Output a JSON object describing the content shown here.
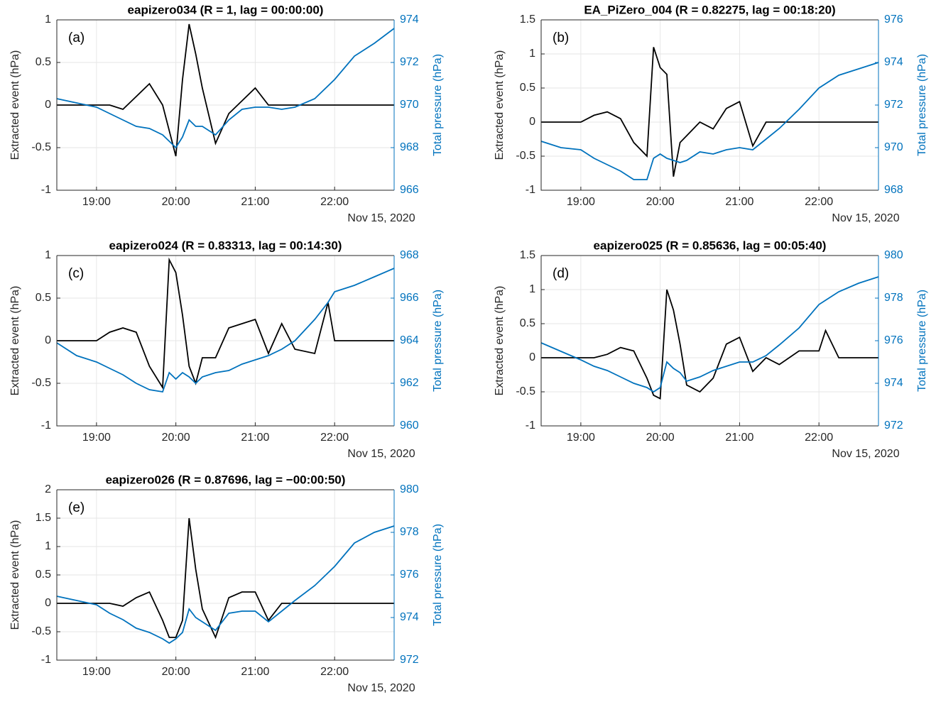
{
  "chart_data": [
    {
      "type": "line",
      "title": "eapizero034 (R = 1, lag = 00:00:00)",
      "panel_label": "(a)",
      "y_label": "Extracted event (hPa)",
      "y2_label": "Total pressure (hPa)",
      "x_label": "Nov 15, 2020",
      "xlim": [
        "18:30",
        "22:45"
      ],
      "xticks": [
        "19:00",
        "20:00",
        "21:00",
        "22:00"
      ],
      "ylim": [
        -1,
        1
      ],
      "yticks": [
        -1,
        -0.5,
        0,
        0.5,
        1
      ],
      "y2lim": [
        966,
        974
      ],
      "y2ticks": [
        966,
        968,
        970,
        972,
        974
      ],
      "grid": true,
      "x": [
        "18:30",
        "18:45",
        "19:00",
        "19:10",
        "19:20",
        "19:30",
        "19:40",
        "19:50",
        "19:55",
        "20:00",
        "20:05",
        "20:10",
        "20:15",
        "20:20",
        "20:30",
        "20:40",
        "20:50",
        "21:00",
        "21:10",
        "21:20",
        "21:30",
        "21:45",
        "22:00",
        "22:15",
        "22:30",
        "22:45"
      ],
      "series": [
        {
          "color": "#000000",
          "values": [
            0,
            0,
            0,
            0,
            -0.05,
            0.1,
            0.25,
            0,
            -0.3,
            -0.6,
            0.3,
            0.95,
            0.6,
            0.2,
            -0.45,
            -0.1,
            0.05,
            0.2,
            0,
            0,
            0,
            0,
            0,
            0,
            0,
            0
          ]
        },
        {
          "color": "#0072bd",
          "axis": "y2",
          "values": [
            970.3,
            970.1,
            969.9,
            969.6,
            969.3,
            969.0,
            968.9,
            968.6,
            968.3,
            968.0,
            968.5,
            969.3,
            969.0,
            969.0,
            968.6,
            969.3,
            969.8,
            969.9,
            969.9,
            969.8,
            969.9,
            970.3,
            971.2,
            972.3,
            972.9,
            973.6
          ]
        }
      ]
    },
    {
      "type": "line",
      "title": "EA_PiZero_004 (R = 0.82275, lag = 00:18:20)",
      "panel_label": "(b)",
      "y_label": "Extracted event (hPa)",
      "y2_label": "Total pressure (hPa)",
      "x_label": "Nov 15, 2020",
      "xlim": [
        "18:30",
        "22:45"
      ],
      "xticks": [
        "19:00",
        "20:00",
        "21:00",
        "22:00"
      ],
      "ylim": [
        -1,
        1.5
      ],
      "yticks": [
        -1,
        -0.5,
        0,
        0.5,
        1,
        1.5
      ],
      "y2lim": [
        968,
        976
      ],
      "y2ticks": [
        968,
        970,
        972,
        974,
        976
      ],
      "grid": true,
      "x": [
        "18:30",
        "18:45",
        "19:00",
        "19:10",
        "19:20",
        "19:30",
        "19:40",
        "19:50",
        "19:55",
        "20:00",
        "20:05",
        "20:10",
        "20:15",
        "20:20",
        "20:30",
        "20:40",
        "20:50",
        "21:00",
        "21:10",
        "21:20",
        "21:30",
        "21:45",
        "22:00",
        "22:15",
        "22:30",
        "22:45"
      ],
      "series": [
        {
          "color": "#000000",
          "values": [
            0,
            0,
            0,
            0.1,
            0.15,
            0.05,
            -0.3,
            -0.5,
            1.1,
            0.8,
            0.7,
            -0.8,
            -0.3,
            -0.2,
            0,
            -0.1,
            0.2,
            0.3,
            -0.35,
            0,
            0,
            0,
            0,
            0,
            0,
            0
          ]
        },
        {
          "color": "#0072bd",
          "axis": "y2",
          "values": [
            970.3,
            970.0,
            969.9,
            969.5,
            969.2,
            968.9,
            968.5,
            968.5,
            969.5,
            969.7,
            969.5,
            969.4,
            969.3,
            969.4,
            969.8,
            969.7,
            969.9,
            970.0,
            969.9,
            970.4,
            970.9,
            971.8,
            972.8,
            973.4,
            973.7,
            974.0
          ]
        }
      ]
    },
    {
      "type": "line",
      "title": "eapizero024 (R = 0.83313, lag = 00:14:30)",
      "panel_label": "(c)",
      "y_label": "Extracted event (hPa)",
      "y2_label": "Total pressure (hPa)",
      "x_label": "Nov 15, 2020",
      "xlim": [
        "18:30",
        "22:45"
      ],
      "xticks": [
        "19:00",
        "20:00",
        "21:00",
        "22:00"
      ],
      "ylim": [
        -1,
        1
      ],
      "yticks": [
        -1,
        -0.5,
        0,
        0.5,
        1
      ],
      "y2lim": [
        960,
        968
      ],
      "y2ticks": [
        960,
        962,
        964,
        966,
        968
      ],
      "grid": true,
      "x": [
        "18:30",
        "18:45",
        "19:00",
        "19:10",
        "19:20",
        "19:30",
        "19:40",
        "19:50",
        "19:55",
        "20:00",
        "20:05",
        "20:10",
        "20:15",
        "20:20",
        "20:30",
        "20:40",
        "20:50",
        "21:00",
        "21:10",
        "21:20",
        "21:30",
        "21:45",
        "21:55",
        "22:00",
        "22:15",
        "22:30",
        "22:45"
      ],
      "series": [
        {
          "color": "#000000",
          "values": [
            0,
            0,
            0,
            0.1,
            0.15,
            0.1,
            -0.3,
            -0.55,
            0.95,
            0.8,
            0.3,
            -0.3,
            -0.5,
            -0.2,
            -0.2,
            0.15,
            0.2,
            0.25,
            -0.15,
            0.2,
            -0.1,
            -0.15,
            0.45,
            0,
            0,
            0,
            0
          ]
        },
        {
          "color": "#0072bd",
          "axis": "y2",
          "values": [
            963.9,
            963.3,
            963.0,
            962.7,
            962.4,
            962.0,
            961.7,
            961.6,
            962.5,
            962.2,
            962.5,
            962.3,
            962.0,
            962.3,
            962.5,
            962.6,
            962.9,
            963.1,
            963.3,
            963.6,
            964.0,
            965.0,
            965.8,
            966.3,
            966.6,
            967.0,
            967.4
          ]
        }
      ]
    },
    {
      "type": "line",
      "title": "eapizero025 (R = 0.85636, lag = 00:05:40)",
      "panel_label": "(d)",
      "y_label": "Extracted event (hPa)",
      "y2_label": "Total pressure (hPa)",
      "x_label": "Nov 15, 2020",
      "xlim": [
        "18:30",
        "22:45"
      ],
      "xticks": [
        "19:00",
        "20:00",
        "21:00",
        "22:00"
      ],
      "ylim": [
        -1,
        1.5
      ],
      "yticks": [
        -1,
        -0.5,
        0,
        0.5,
        1,
        1.5
      ],
      "y2lim": [
        972,
        980
      ],
      "y2ticks": [
        972,
        974,
        976,
        978,
        980
      ],
      "grid": true,
      "x": [
        "18:30",
        "18:45",
        "19:00",
        "19:10",
        "19:20",
        "19:30",
        "19:40",
        "19:50",
        "19:55",
        "20:00",
        "20:05",
        "20:10",
        "20:15",
        "20:20",
        "20:30",
        "20:40",
        "20:50",
        "21:00",
        "21:10",
        "21:20",
        "21:30",
        "21:45",
        "22:00",
        "22:05",
        "22:15",
        "22:30",
        "22:45"
      ],
      "series": [
        {
          "color": "#000000",
          "values": [
            0,
            0,
            0,
            0,
            0.05,
            0.15,
            0.1,
            -0.3,
            -0.55,
            -0.6,
            1.0,
            0.7,
            0.2,
            -0.4,
            -0.5,
            -0.3,
            0.2,
            0.3,
            -0.2,
            0,
            -0.1,
            0.1,
            0.1,
            0.4,
            0,
            0,
            0
          ]
        },
        {
          "color": "#0072bd",
          "axis": "y2",
          "values": [
            975.9,
            975.5,
            975.1,
            974.8,
            974.6,
            974.3,
            974.0,
            973.8,
            973.6,
            973.8,
            975.0,
            974.7,
            974.5,
            974.1,
            974.3,
            974.6,
            974.8,
            975.0,
            975.0,
            975.3,
            975.8,
            976.6,
            977.7,
            977.9,
            978.3,
            978.7,
            979.0
          ]
        }
      ]
    },
    {
      "type": "line",
      "title": "eapizero026 (R = 0.87696, lag = −00:00:50)",
      "panel_label": "(e)",
      "y_label": "Extracted event (hPa)",
      "y2_label": "Total pressure (hPa)",
      "x_label": "Nov 15, 2020",
      "xlim": [
        "18:30",
        "22:45"
      ],
      "xticks": [
        "19:00",
        "20:00",
        "21:00",
        "22:00"
      ],
      "ylim": [
        -1,
        2
      ],
      "yticks": [
        -1,
        -0.5,
        0,
        0.5,
        1,
        1.5,
        2
      ],
      "y2lim": [
        972,
        980
      ],
      "y2ticks": [
        972,
        974,
        976,
        978,
        980
      ],
      "grid": true,
      "x": [
        "18:30",
        "18:45",
        "19:00",
        "19:10",
        "19:20",
        "19:30",
        "19:40",
        "19:50",
        "19:55",
        "20:00",
        "20:05",
        "20:10",
        "20:15",
        "20:20",
        "20:30",
        "20:40",
        "20:50",
        "21:00",
        "21:10",
        "21:20",
        "21:30",
        "21:45",
        "22:00",
        "22:15",
        "22:30",
        "22:45"
      ],
      "series": [
        {
          "color": "#000000",
          "values": [
            0,
            0,
            0,
            0,
            -0.05,
            0.1,
            0.2,
            -0.3,
            -0.6,
            -0.6,
            -0.3,
            1.5,
            0.6,
            -0.1,
            -0.6,
            0.1,
            0.2,
            0.2,
            -0.3,
            0,
            0,
            0,
            0,
            0,
            0,
            0
          ]
        },
        {
          "color": "#0072bd",
          "axis": "y2",
          "values": [
            975.0,
            974.8,
            974.6,
            974.2,
            973.9,
            973.5,
            973.3,
            973.0,
            972.8,
            973.0,
            973.3,
            974.4,
            974.0,
            973.8,
            973.4,
            974.2,
            974.3,
            974.3,
            973.8,
            974.3,
            974.8,
            975.5,
            976.4,
            977.5,
            978.0,
            978.3
          ]
        }
      ]
    }
  ]
}
